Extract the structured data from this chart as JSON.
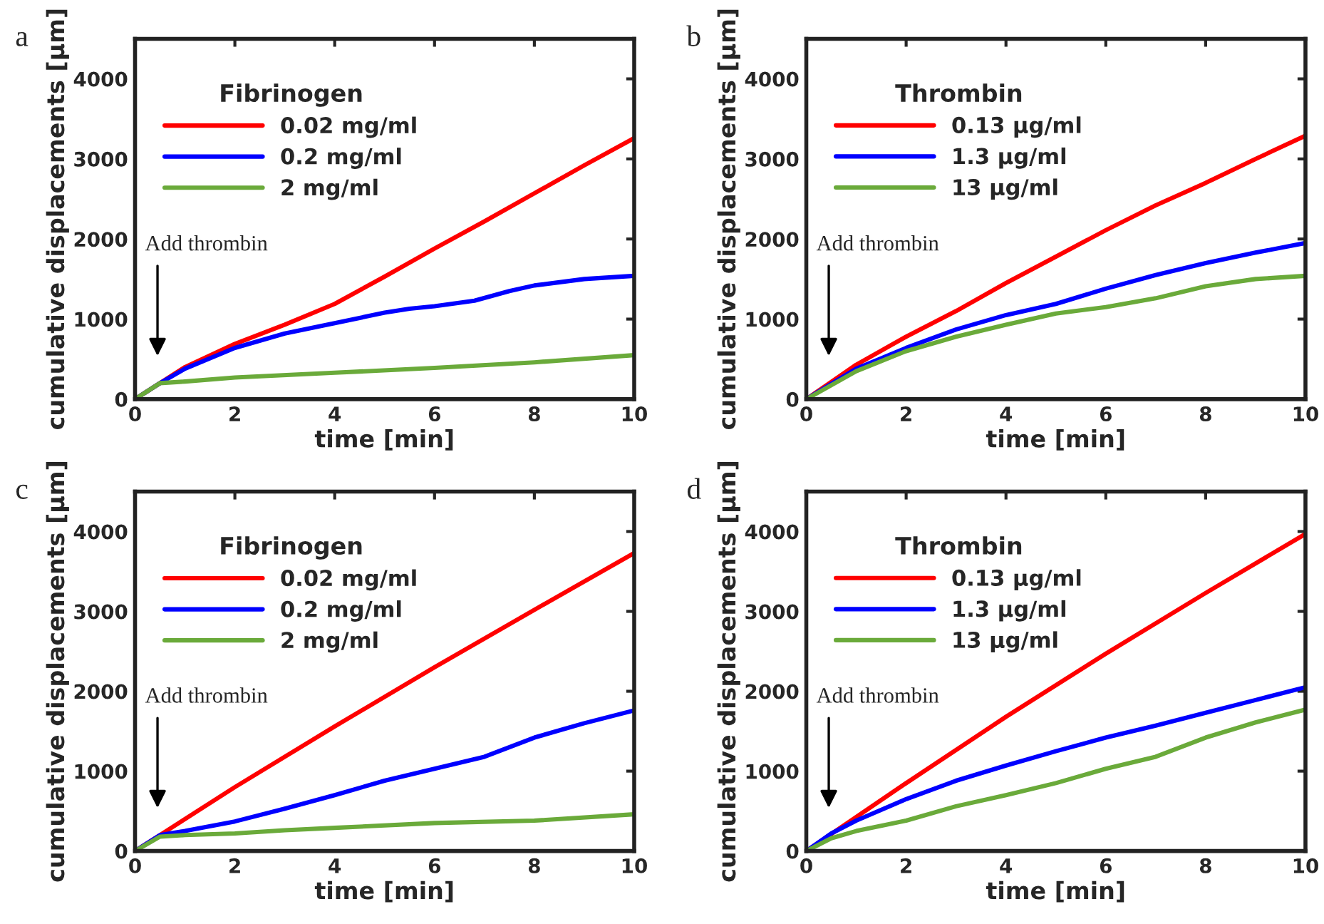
{
  "chart_data": [
    {
      "type": "line",
      "title": "a",
      "xlabel": "time [min]",
      "ylabel": "cumulative displacements [μm]",
      "legend_title": "Fibrinogen",
      "legend": "top left",
      "grid": false,
      "xlim": [
        0,
        10
      ],
      "ylim": [
        0,
        4500
      ],
      "xticks": [
        0,
        2,
        4,
        6,
        8,
        10
      ],
      "yticks": [
        0,
        1000,
        2000,
        3000,
        4000
      ],
      "annotations": [
        "Add thrombin"
      ],
      "series": [
        {
          "name": "0.02 mg/ml",
          "color": "#ff0000",
          "x": [
            0,
            0.5,
            1,
            2,
            3,
            4,
            5,
            6,
            7,
            8,
            9,
            10
          ],
          "values": [
            0,
            200,
            400,
            690,
            930,
            1190,
            1530,
            1880,
            2220,
            2570,
            2920,
            3260
          ]
        },
        {
          "name": "0.2 mg/ml",
          "color": "#0000ff",
          "x": [
            0,
            0.5,
            1,
            2,
            3,
            4,
            5,
            5.5,
            6,
            6.8,
            7.5,
            8,
            9,
            10
          ],
          "values": [
            0,
            200,
            380,
            640,
            820,
            950,
            1080,
            1130,
            1160,
            1230,
            1350,
            1420,
            1500,
            1540
          ]
        },
        {
          "name": "2 mg/ml",
          "color": "#6aaa3a",
          "x": [
            0,
            0.5,
            1,
            2,
            4,
            6,
            8,
            10
          ],
          "values": [
            0,
            200,
            220,
            270,
            330,
            390,
            460,
            550
          ]
        }
      ]
    },
    {
      "type": "line",
      "title": "b",
      "xlabel": "time [min]",
      "ylabel": "cumulative displacements [μm]",
      "legend_title": "Thrombin",
      "legend": "top left",
      "grid": false,
      "xlim": [
        0,
        10
      ],
      "ylim": [
        0,
        4500
      ],
      "xticks": [
        0,
        2,
        4,
        6,
        8,
        10
      ],
      "yticks": [
        0,
        1000,
        2000,
        3000,
        4000
      ],
      "annotations": [
        "Add thrombin"
      ],
      "series": [
        {
          "name": "0.13 μg/ml",
          "color": "#ff0000",
          "x": [
            0,
            1,
            2,
            3,
            4,
            5,
            6,
            7,
            8,
            9,
            10
          ],
          "values": [
            0,
            430,
            780,
            1100,
            1450,
            1780,
            2110,
            2420,
            2700,
            3000,
            3290
          ]
        },
        {
          "name": "1.3 μg/ml",
          "color": "#0000ff",
          "x": [
            0,
            1,
            2,
            3,
            4,
            5,
            6,
            7,
            8,
            9,
            10
          ],
          "values": [
            0,
            380,
            640,
            870,
            1050,
            1190,
            1380,
            1550,
            1700,
            1830,
            1950
          ]
        },
        {
          "name": "13 μg/ml",
          "color": "#6aaa3a",
          "x": [
            0,
            1,
            2,
            3,
            4,
            5,
            6,
            7,
            8,
            9,
            10
          ],
          "values": [
            0,
            350,
            600,
            780,
            930,
            1070,
            1150,
            1260,
            1410,
            1500,
            1540
          ]
        }
      ]
    },
    {
      "type": "line",
      "title": "c",
      "xlabel": "time [min]",
      "ylabel": "cumulative displacements [μm]",
      "legend_title": "Fibrinogen",
      "legend": "top left",
      "grid": false,
      "xlim": [
        0,
        10
      ],
      "ylim": [
        0,
        4500
      ],
      "xticks": [
        0,
        2,
        4,
        6,
        8,
        10
      ],
      "yticks": [
        0,
        1000,
        2000,
        3000,
        4000
      ],
      "annotations": [
        "Add thrombin"
      ],
      "series": [
        {
          "name": "0.02 mg/ml",
          "color": "#ff0000",
          "x": [
            0,
            0.5,
            2,
            4,
            6,
            8,
            10
          ],
          "values": [
            0,
            200,
            800,
            1560,
            2300,
            3020,
            3730
          ]
        },
        {
          "name": "0.2 mg/ml",
          "color": "#0000ff",
          "x": [
            0,
            0.5,
            1,
            2,
            3,
            4,
            5,
            6,
            7,
            8,
            9,
            10
          ],
          "values": [
            0,
            200,
            250,
            370,
            530,
            700,
            880,
            1030,
            1180,
            1420,
            1600,
            1760
          ]
        },
        {
          "name": "2 mg/ml",
          "color": "#6aaa3a",
          "x": [
            0,
            0.5,
            1,
            2,
            3,
            4,
            6,
            8,
            10
          ],
          "values": [
            0,
            180,
            200,
            220,
            260,
            290,
            350,
            380,
            460
          ]
        }
      ]
    },
    {
      "type": "line",
      "title": "d",
      "xlabel": "time [min]",
      "ylabel": "cumulative displacements [μm]",
      "legend_title": "Thrombin",
      "legend": "top left",
      "grid": false,
      "xlim": [
        0,
        10
      ],
      "ylim": [
        0,
        4500
      ],
      "xticks": [
        0,
        2,
        4,
        6,
        8,
        10
      ],
      "yticks": [
        0,
        1000,
        2000,
        3000,
        4000
      ],
      "annotations": [
        "Add thrombin"
      ],
      "series": [
        {
          "name": "0.13 μg/ml",
          "color": "#ff0000",
          "x": [
            0,
            2,
            4,
            6,
            8,
            10
          ],
          "values": [
            0,
            850,
            1680,
            2470,
            3230,
            3970
          ]
        },
        {
          "name": "1.3 μg/ml",
          "color": "#0000ff",
          "x": [
            0,
            0.5,
            1,
            2,
            3,
            4,
            5,
            6,
            7,
            8,
            9,
            10
          ],
          "values": [
            0,
            220,
            380,
            650,
            880,
            1070,
            1250,
            1420,
            1570,
            1730,
            1890,
            2050
          ]
        },
        {
          "name": "13 μg/ml",
          "color": "#6aaa3a",
          "x": [
            0,
            0.5,
            1,
            2,
            3,
            4,
            5,
            6,
            7,
            8,
            9,
            10
          ],
          "values": [
            0,
            160,
            250,
            380,
            560,
            700,
            850,
            1030,
            1180,
            1420,
            1610,
            1770
          ]
        }
      ]
    }
  ]
}
